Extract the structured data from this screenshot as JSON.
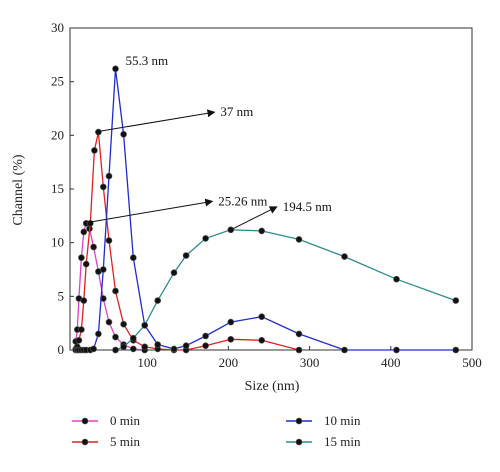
{
  "chart_data": {
    "type": "line",
    "xlabel": "Size (nm)",
    "ylabel": "Channel (%)",
    "xlim": [
      5,
      500
    ],
    "ylim": [
      0,
      30
    ],
    "x_ticks": [
      100,
      200,
      300,
      400,
      500
    ],
    "y_ticks": [
      0,
      5,
      10,
      15,
      20,
      25,
      30
    ],
    "grid": false,
    "legend_placement": "bottom",
    "series": [
      {
        "name": "0 min",
        "color": "#e040c8",
        "points": [
          [
            12,
            0.8
          ],
          [
            14,
            1.9
          ],
          [
            16,
            4.8
          ],
          [
            19,
            8.6
          ],
          [
            22,
            11.0
          ],
          [
            25,
            11.8
          ],
          [
            29,
            11.3
          ],
          [
            34,
            9.6
          ],
          [
            40,
            7.3
          ],
          [
            46,
            4.8
          ],
          [
            53,
            2.6
          ],
          [
            61,
            1.2
          ],
          [
            71,
            0.5
          ],
          [
            83,
            0.1
          ],
          [
            97,
            0
          ]
        ]
      },
      {
        "name": "5 min",
        "color": "#e02020",
        "points": [
          [
            12,
            0.1
          ],
          [
            14,
            0.3
          ],
          [
            16,
            0.9
          ],
          [
            19,
            1.9
          ],
          [
            22,
            4.6
          ],
          [
            25,
            8.0
          ],
          [
            30,
            11.8
          ],
          [
            35,
            18.6
          ],
          [
            40,
            20.3
          ],
          [
            46,
            15.2
          ],
          [
            53,
            10.2
          ],
          [
            61,
            5.5
          ],
          [
            71,
            2.4
          ],
          [
            83,
            0.9
          ],
          [
            97,
            0.3
          ],
          [
            113,
            0.1
          ],
          [
            133,
            0
          ],
          [
            148,
            0
          ],
          [
            172,
            0.4
          ],
          [
            203,
            1.0
          ],
          [
            241,
            0.9
          ],
          [
            287,
            0
          ]
        ]
      },
      {
        "name": "10 min",
        "color": "#1e2ccc",
        "points": [
          [
            12,
            0
          ],
          [
            14,
            0
          ],
          [
            16,
            0
          ],
          [
            19,
            0
          ],
          [
            22,
            0
          ],
          [
            25,
            0
          ],
          [
            30,
            0
          ],
          [
            34,
            0.1
          ],
          [
            40,
            1.5
          ],
          [
            46,
            7.5
          ],
          [
            53,
            16.2
          ],
          [
            61,
            26.2
          ],
          [
            71,
            20.1
          ],
          [
            83,
            8.6
          ],
          [
            97,
            2.3
          ],
          [
            113,
            0.5
          ],
          [
            133,
            0.1
          ],
          [
            148,
            0.4
          ],
          [
            172,
            1.3
          ],
          [
            203,
            2.6
          ],
          [
            241,
            3.1
          ],
          [
            287,
            1.5
          ],
          [
            343,
            0
          ],
          [
            407,
            0
          ],
          [
            480,
            0
          ]
        ]
      },
      {
        "name": "15 min",
        "color": "#2e8b8b",
        "points": [
          [
            61,
            0
          ],
          [
            71,
            0.3
          ],
          [
            83,
            1.1
          ],
          [
            97,
            2.3
          ],
          [
            113,
            4.6
          ],
          [
            133,
            7.2
          ],
          [
            148,
            8.8
          ],
          [
            172,
            10.4
          ],
          [
            203,
            11.2
          ],
          [
            241,
            11.1
          ],
          [
            287,
            10.3
          ],
          [
            343,
            8.7
          ],
          [
            407,
            6.6
          ],
          [
            480,
            4.6
          ]
        ]
      }
    ],
    "annotations": [
      {
        "text": "55.3 nm",
        "x": 61,
        "y": 26.2,
        "arrow": false
      },
      {
        "text": "37 nm",
        "x": 40,
        "y": 20.3,
        "arrow": true
      },
      {
        "text": "25.26 nm",
        "x": 25,
        "y": 11.8,
        "arrow": true
      },
      {
        "text": "194.5 nm",
        "x": 203,
        "y": 11.2,
        "arrow": true
      }
    ]
  }
}
